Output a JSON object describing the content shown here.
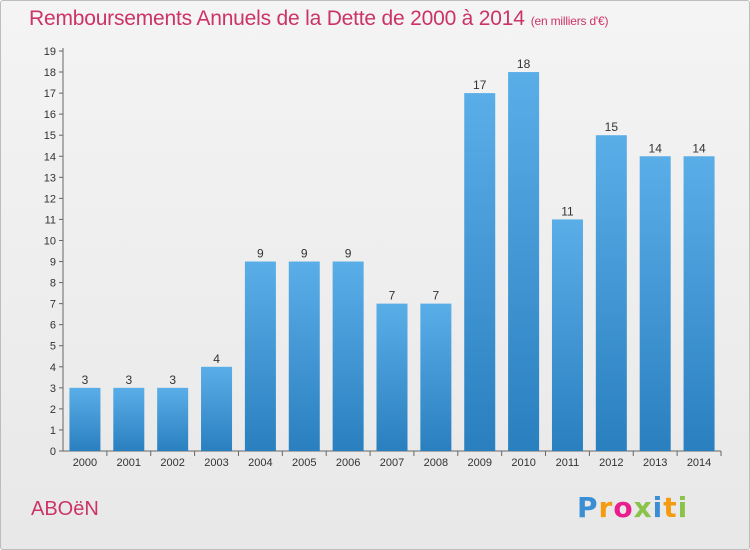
{
  "chart_data": {
    "type": "bar",
    "title": "Remboursements Annuels de la Dette de 2000 à 2014",
    "subtitle": "(en milliers d'€)",
    "categories": [
      "2000",
      "2001",
      "2002",
      "2003",
      "2004",
      "2005",
      "2006",
      "2007",
      "2008",
      "2009",
      "2010",
      "2011",
      "2012",
      "2013",
      "2014"
    ],
    "values": [
      3,
      3,
      3,
      4,
      9,
      9,
      9,
      7,
      7,
      17,
      18,
      11,
      15,
      14,
      14
    ],
    "ylim": [
      0,
      19
    ],
    "yticks": [
      0,
      1,
      2,
      3,
      4,
      5,
      6,
      7,
      8,
      9,
      10,
      11,
      12,
      13,
      14,
      15,
      16,
      17,
      18,
      19
    ],
    "grid": false,
    "bar_color_top": "#5aaee8",
    "bar_color_bottom": "#2a7fbf",
    "text_color": "#cc3366"
  },
  "commune": "ABOëN",
  "brand": {
    "letters": [
      "P",
      "r",
      "o",
      "x",
      "i",
      "t",
      "i"
    ],
    "colors": [
      "#3a8fd4",
      "#f39c12",
      "#e91e8c",
      "#8bc34a",
      "#3a8fd4",
      "#f39c12",
      "#8bc34a"
    ]
  }
}
